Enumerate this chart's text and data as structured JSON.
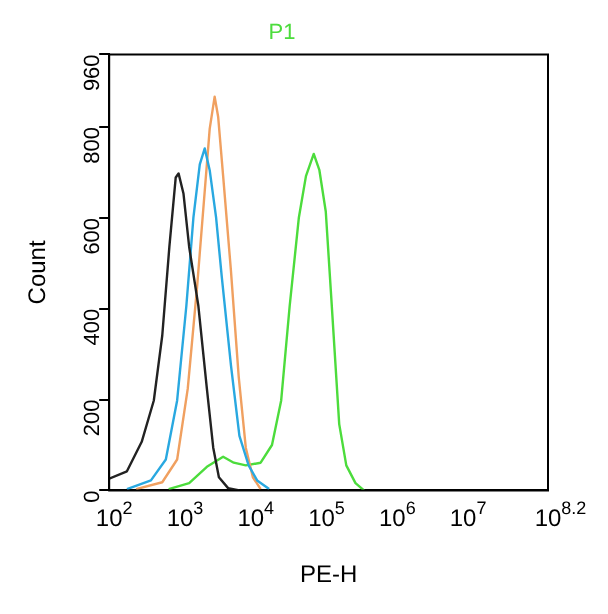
{
  "chart_data": {
    "type": "line",
    "title": "P1",
    "xlabel": "PE-H",
    "ylabel": "Count",
    "log": "x",
    "xlim": [
      100,
      158489319
    ],
    "xticks": [
      {
        "value": 100,
        "label": "10$^{2}$"
      },
      {
        "value": 1000,
        "label": "10$^{3}$"
      },
      {
        "value": 10000,
        "label": "10$^{4}$"
      },
      {
        "value": 100000,
        "label": "10$^{5}$"
      },
      {
        "value": 1000000,
        "label": "10$^{6}$"
      },
      {
        "value": 10000000,
        "label": "10$^{7}$"
      },
      {
        "value": 158489319,
        "label": "10$^{8.2}$"
      }
    ],
    "ylim": [
      0,
      960
    ],
    "yticks": [
      0,
      200,
      400,
      600,
      800,
      960
    ],
    "grid": false,
    "legend": false,
    "marker": "none",
    "line_style": "solid",
    "series": [
      {
        "color": "#222222",
        "x": [
          100,
          178,
          288,
          427,
          562,
          708,
          871,
          955,
          1122,
          1349,
          1820,
          2399,
          2951,
          3548,
          4786,
          6918
        ],
        "values": [
          26,
          42,
          107,
          198,
          341,
          536,
          689,
          698,
          653,
          536,
          406,
          224,
          94,
          29,
          5,
          0
        ]
      },
      {
        "color": "#29a8e0",
        "x": [
          178,
          389,
          631,
          912,
          1230,
          1549,
          1905,
          2239,
          2630,
          3236,
          3890,
          5248,
          6918,
          9333,
          12303,
          18197
        ],
        "values": [
          3,
          22,
          68,
          198,
          406,
          601,
          718,
          753,
          705,
          601,
          471,
          276,
          120,
          55,
          22,
          3
        ]
      },
      {
        "color": "#f0a060",
        "x": [
          240,
          562,
          912,
          1288,
          1738,
          2188,
          2630,
          3090,
          3467,
          4074,
          5248,
          6761,
          8511,
          10715,
          13804
        ],
        "values": [
          3,
          18,
          68,
          224,
          445,
          640,
          796,
          867,
          822,
          692,
          484,
          250,
          94,
          29,
          3
        ]
      },
      {
        "color": "#4cdc3c",
        "x": [
          692,
          1349,
          2399,
          4074,
          5754,
          8511,
          13804,
          19953,
          26915,
          35481,
          47863,
          60256,
          77625,
          93325,
          114815,
          138038,
          177828,
          223872,
          301995,
          398107
        ],
        "values": [
          3,
          16,
          52,
          74,
          61,
          55,
          61,
          100,
          198,
          406,
          601,
          692,
          741,
          705,
          614,
          419,
          146,
          55,
          16,
          0
        ]
      }
    ]
  }
}
